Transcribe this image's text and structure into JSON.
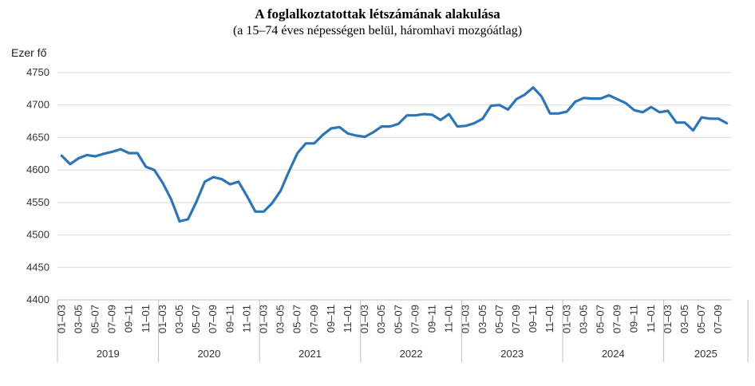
{
  "chart_data": {
    "type": "line",
    "title": "A foglalkoztatottak létszámának alakulása",
    "subtitle": "(a 15–74 éves népességen belül, háromhavi mozgóátlag)",
    "ylabel": "Ezer fő",
    "ylim": [
      4400,
      4750
    ],
    "yticks": [
      4400,
      4450,
      4500,
      4550,
      4600,
      4650,
      4700,
      4750
    ],
    "grid": true,
    "color": "#2E75B6",
    "years": [
      {
        "label": "2019",
        "months": 12
      },
      {
        "label": "2020",
        "months": 12
      },
      {
        "label": "2021",
        "months": 12
      },
      {
        "label": "2022",
        "months": 12
      },
      {
        "label": "2023",
        "months": 12
      },
      {
        "label": "2024",
        "months": 12
      },
      {
        "label": "2025",
        "months": 10
      }
    ],
    "month_tick_labels": [
      "01–03",
      "03–05",
      "05–07",
      "07–09",
      "09–11",
      "11–01"
    ],
    "last_year_tick_labels": [
      "01–03",
      "03–05",
      "05–07",
      "07–09"
    ],
    "values": [
      4622,
      4609,
      4618,
      4623,
      4621,
      4625,
      4628,
      4632,
      4626,
      4626,
      4605,
      4600,
      4580,
      4555,
      4521,
      4524,
      4551,
      4582,
      4589,
      4586,
      4578,
      4582,
      4560,
      4536,
      4536,
      4549,
      4568,
      4598,
      4626,
      4641,
      4641,
      4654,
      4664,
      4666,
      4656,
      4653,
      4651,
      4658,
      4667,
      4667,
      4671,
      4684,
      4684,
      4686,
      4685,
      4677,
      4686,
      4667,
      4668,
      4672,
      4679,
      4699,
      4700,
      4693,
      4709,
      4716,
      4727,
      4713,
      4687,
      4687,
      4690,
      4705,
      4711,
      4710,
      4710,
      4715,
      4709,
      4703,
      4692,
      4689,
      4697,
      4689,
      4691,
      4673,
      4673,
      4661,
      4681,
      4679,
      4679,
      4672
    ]
  }
}
